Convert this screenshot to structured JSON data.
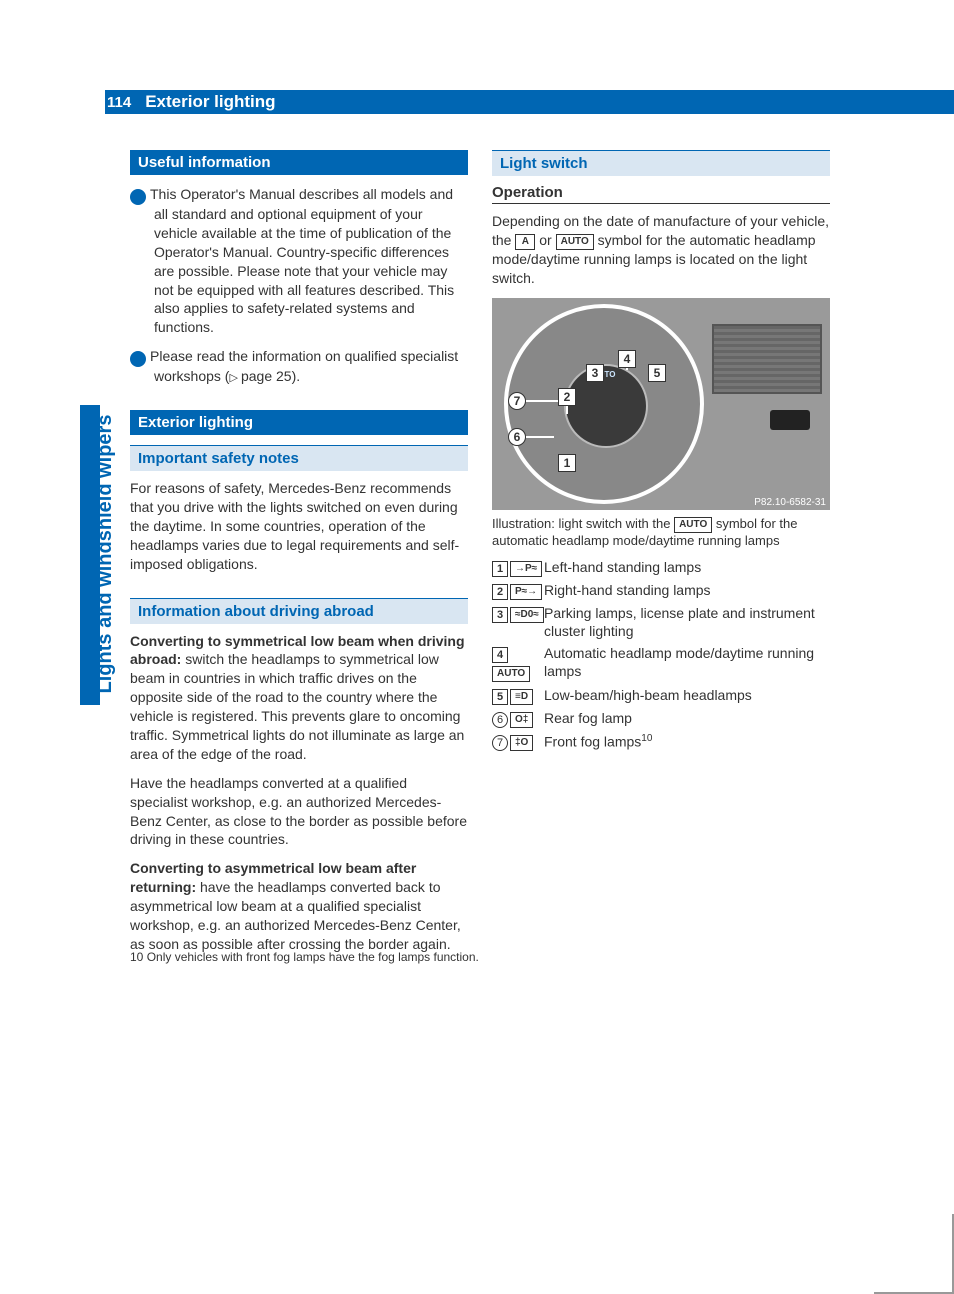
{
  "page_number": "114",
  "chapter_title": "Exterior lighting",
  "side_label": "Lights and windshield wipers",
  "colors": {
    "primary": "#0066b3",
    "section_bg": "#d9e6f2",
    "text": "#333333",
    "background": "#ffffff"
  },
  "left_col": {
    "useful_info_heading": "Useful information",
    "info1": "This Operator's Manual describes all models and all standard and optional equipment of your vehicle available at the time of publication of the Operator's Manual. Country-specific differences are possible. Please note that your vehicle may not be equipped with all features described. This also applies to safety-related systems and functions.",
    "info2_pre": "Please read the information on qualified specialist workshops (",
    "info2_ref": "page 25",
    "info2_post": ").",
    "exterior_heading": "Exterior lighting",
    "safety_heading": "Important safety notes",
    "safety_para": "For reasons of safety, Mercedes-Benz recommends that you drive with the lights switched on even during the daytime. In some countries, operation of the headlamps varies due to legal requirements and self-imposed obligations.",
    "abroad_heading": "Information about driving abroad",
    "convert_sym_bold": "Converting to symmetrical low beam when driving abroad: ",
    "convert_sym_text": "switch the headlamps to symmetrical low beam in countries in which traffic drives on the opposite side of the road to the country where the vehicle is registered. This prevents glare to oncoming traffic. Symmetrical lights do not illuminate as large an area of the edge of the road.",
    "convert_para2": "Have the headlamps converted at a qualified specialist workshop, e.g. an authorized Mercedes-Benz Center, as close to the border as possible before driving in these countries.",
    "convert_asym_bold": "Converting to asymmetrical low beam after returning: ",
    "convert_asym_text": "have the headlamps converted back to asymmetrical low beam at a qualified specialist workshop, e.g. an authorized Mercedes-Benz Center, as soon as possible after crossing the border again."
  },
  "right_col": {
    "light_switch_heading": "Light switch",
    "operation_heading": "Operation",
    "op_para_pre": "Depending on the date of manufacture of your vehicle, the ",
    "sym_a": "A",
    "op_or": " or ",
    "sym_auto": "AUTO",
    "op_para_post": " symbol for the automatic headlamp mode/daytime running lamps is located on the light switch.",
    "figure_ref": "P82.10-6582-31",
    "figure_auto_label": "AUTO",
    "caption_pre": "Illustration: light switch with the ",
    "caption_post": " symbol for the automatic headlamp mode/daytime running lamps",
    "legend": [
      {
        "n": "1",
        "type": "box",
        "sym": "→P≈",
        "text": "Left-hand standing lamps"
      },
      {
        "n": "2",
        "type": "box",
        "sym": "P≈→",
        "text": "Right-hand standing lamps"
      },
      {
        "n": "3",
        "type": "box",
        "sym": "≈D0≈",
        "text": "Parking lamps, license plate and instrument cluster lighting"
      },
      {
        "n": "4",
        "type": "box",
        "sym": "AUTO",
        "text": "Automatic headlamp mode/daytime running lamps"
      },
      {
        "n": "5",
        "type": "box",
        "sym": "≡D",
        "text": "Low-beam/high-beam headlamps"
      },
      {
        "n": "6",
        "type": "circ",
        "sym": "O‡",
        "text": "Rear fog lamp"
      },
      {
        "n": "7",
        "type": "circ",
        "sym": "‡O",
        "text": "Front fog lamps",
        "sup": "10"
      }
    ]
  },
  "footnote_num": "10",
  "footnote_text": " Only vehicles with front fog lamps have the fog lamps function."
}
